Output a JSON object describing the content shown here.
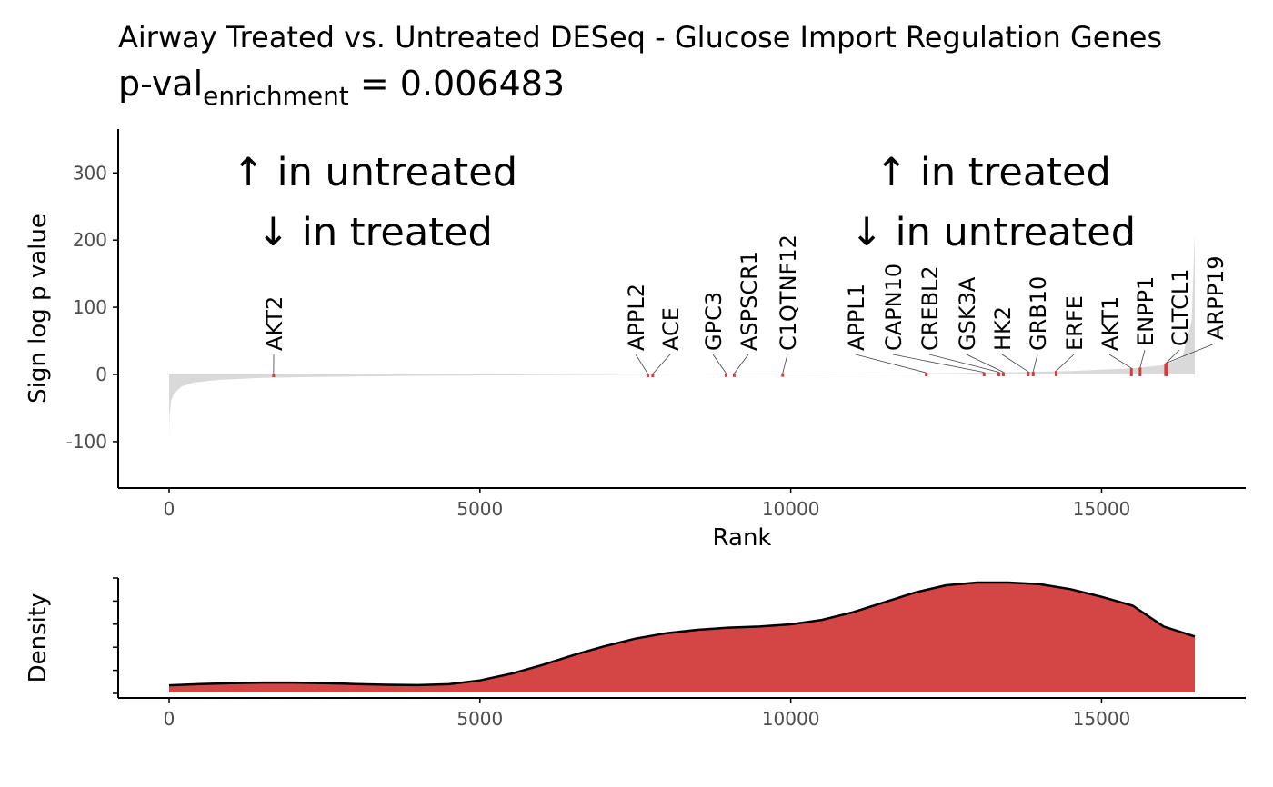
{
  "title": "Airway Treated vs. Untreated DESeq - Glucose Import Regulation Genes",
  "subtitle": {
    "prefix": "p-val",
    "subscript": "enrichment",
    "suffix": " = 0.006483"
  },
  "colors": {
    "background_fill": "#d9d9d9",
    "hit_marker": "#d43d3d",
    "density_fill": "#d44646",
    "density_line": "#000000",
    "axis": "#000000",
    "tick_text": "#4d4d4d"
  },
  "chart_data": [
    {
      "type": "area",
      "panel": "top",
      "xlabel": "Rank",
      "ylabel": "Sign log p value",
      "xlim": [
        0,
        16500
      ],
      "ylim": [
        -170,
        365
      ],
      "x_ticks": [
        0,
        5000,
        10000,
        15000
      ],
      "x_tick_labels": [
        "0",
        "5000",
        "10000",
        "15000"
      ],
      "y_ticks": [
        -100,
        0,
        100,
        200,
        300
      ],
      "y_tick_labels": [
        "-100",
        "0",
        "100",
        "200",
        "300"
      ],
      "grid": false,
      "background_curve": {
        "x": [
          0,
          2,
          8,
          30,
          80,
          200,
          400,
          800,
          1500,
          2500,
          4000,
          6000,
          7500,
          8400,
          8700,
          10000,
          12000,
          13500,
          14500,
          15500,
          16000,
          16300,
          16450,
          16500
        ],
        "y": [
          -140,
          -90,
          -60,
          -40,
          -28,
          -18,
          -12,
          -8,
          -5,
          -3.5,
          -2,
          -1,
          -0.4,
          0,
          0.2,
          0.6,
          1.5,
          3,
          5,
          9,
          14,
          25,
          80,
          210
        ]
      },
      "annotations": [
        {
          "text_lines": [
            "↑ in untreated",
            "↓ in treated"
          ],
          "side": "left"
        },
        {
          "text_lines": [
            "↑ in treated",
            "↓ in untreated"
          ],
          "side": "right"
        }
      ],
      "genes": [
        {
          "name": "AKT2",
          "rank": 1680,
          "value": -1.5
        },
        {
          "name": "APPL2",
          "rank": 7700,
          "value": -0.3
        },
        {
          "name": "ACE",
          "rank": 7780,
          "value": -0.3
        },
        {
          "name": "GPC3",
          "rank": 8960,
          "value": 0.3
        },
        {
          "name": "ASPSCR1",
          "rank": 9090,
          "value": 0.3
        },
        {
          "name": "C1QTNF12",
          "rank": 9870,
          "value": 0.5
        },
        {
          "name": "APPL1",
          "rank": 12180,
          "value": 1.2
        },
        {
          "name": "CAPN10",
          "rank": 13110,
          "value": 1.8
        },
        {
          "name": "CREBL2",
          "rank": 13350,
          "value": 2.0
        },
        {
          "name": "GSK3A",
          "rank": 13420,
          "value": 2.2
        },
        {
          "name": "HK2",
          "rank": 13820,
          "value": 2.8
        },
        {
          "name": "GRB10",
          "rank": 13900,
          "value": 3.0
        },
        {
          "name": "ERFE",
          "rank": 14270,
          "value": 4.0
        },
        {
          "name": "AKT1",
          "rank": 15480,
          "value": 8.0
        },
        {
          "name": "ENPP1",
          "rank": 15620,
          "value": 9.0
        },
        {
          "name": "CLTCL1",
          "rank": 16030,
          "value": 15.0
        },
        {
          "name": "ARPP19",
          "rank": 16050,
          "value": 16.0
        }
      ]
    },
    {
      "type": "area",
      "panel": "bottom",
      "xlabel": "",
      "ylabel": "Density",
      "xlim": [
        0,
        16500
      ],
      "x_ticks": [
        0,
        5000,
        10000,
        15000
      ],
      "x_tick_labels": [
        "0",
        "5000",
        "10000",
        "15000"
      ],
      "y_tick_labels_shown": false,
      "grid": false,
      "series": [
        {
          "x": [
            0,
            500,
            1000,
            1500,
            2000,
            2500,
            3000,
            3500,
            4000,
            4500,
            5000,
            5500,
            6000,
            6500,
            7000,
            7500,
            8000,
            8500,
            9000,
            9500,
            10000,
            10500,
            11000,
            11500,
            12000,
            12500,
            13000,
            13500,
            14000,
            14500,
            15000,
            15500,
            16000,
            16500
          ],
          "y": [
            0.065,
            0.077,
            0.085,
            0.09,
            0.09,
            0.085,
            0.077,
            0.07,
            0.067,
            0.075,
            0.11,
            0.17,
            0.25,
            0.34,
            0.42,
            0.49,
            0.54,
            0.57,
            0.59,
            0.6,
            0.62,
            0.66,
            0.73,
            0.82,
            0.91,
            0.975,
            1.0,
            1.0,
            0.985,
            0.94,
            0.87,
            0.79,
            0.6,
            0.51
          ]
        }
      ]
    }
  ]
}
